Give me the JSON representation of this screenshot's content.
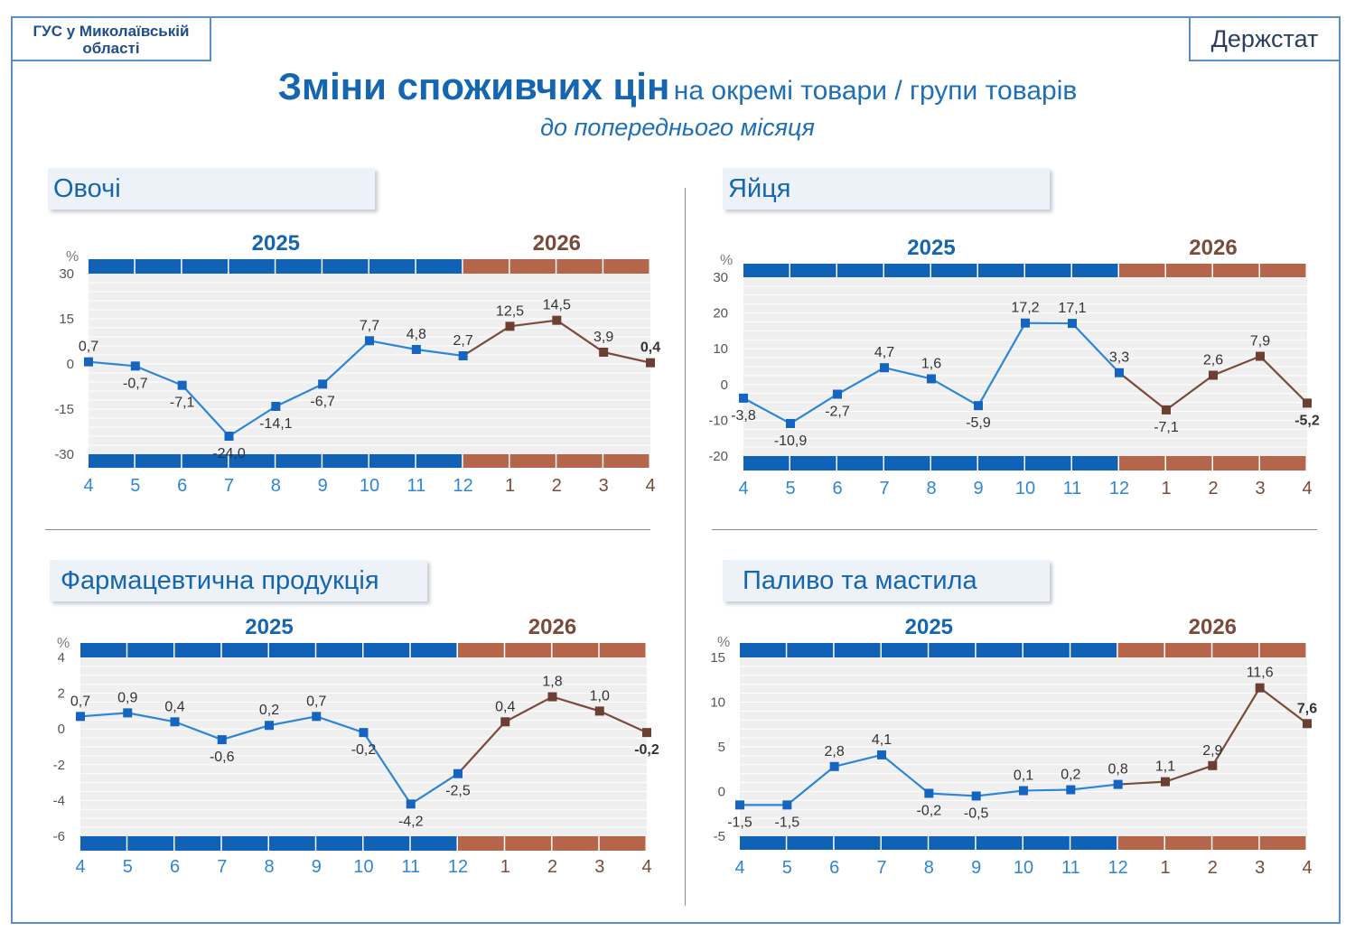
{
  "header": {
    "org_line1": "ГУС у Миколаївській",
    "org_line2": "області",
    "brand": "Держстат",
    "title_main": "Зміни споживчих цін",
    "title_rest": "на окремі товари / групи товарів",
    "subtitle": "до попереднього місяця"
  },
  "colors": {
    "year2025": "#0f62b6",
    "year2026": "#b5654a",
    "line2025": "#2e86d6",
    "line2026": "#7a4a3a",
    "plot_bg": "#efeff0",
    "grid": "#ffffff"
  },
  "chart_data": [
    {
      "type": "line",
      "title": "Овочі",
      "ylabel": "%",
      "years": [
        "2025",
        "2026"
      ],
      "categories": [
        "4",
        "5",
        "6",
        "7",
        "8",
        "9",
        "10",
        "11",
        "12",
        "1",
        "2",
        "3",
        "4"
      ],
      "values": [
        0.7,
        -0.7,
        -7.1,
        -24.0,
        -14.1,
        -6.7,
        7.7,
        4.8,
        2.7,
        12.5,
        14.5,
        3.9,
        0.4
      ],
      "value_labels": [
        "0,7",
        "-0,7",
        "-7,1",
        "-24,0",
        "-14,1",
        "-6,7",
        "7,7",
        "4,8",
        "2,7",
        "12,5",
        "14,5",
        "3,9",
        "0,4"
      ],
      "yticks": [
        30,
        15,
        0,
        -15,
        -30
      ],
      "ytick_labels": [
        "30",
        "15",
        "0",
        "-15",
        "-30"
      ],
      "ylim": [
        -30,
        30
      ],
      "split_index": 8,
      "grid": true
    },
    {
      "type": "line",
      "title": "Яйця",
      "ylabel": "%",
      "years": [
        "2025",
        "2026"
      ],
      "categories": [
        "4",
        "5",
        "6",
        "7",
        "8",
        "9",
        "10",
        "11",
        "12",
        "1",
        "2",
        "3",
        "4"
      ],
      "values": [
        -3.8,
        -10.9,
        -2.7,
        4.7,
        1.6,
        -5.9,
        17.2,
        17.1,
        3.3,
        -7.1,
        2.6,
        7.9,
        -5.2
      ],
      "value_labels": [
        "-3,8",
        "-10,9",
        "-2,7",
        "4,7",
        "1,6",
        "-5,9",
        "17,2",
        "17,1",
        "3,3",
        "-7,1",
        "2,6",
        "7,9",
        "-5,2"
      ],
      "yticks": [
        30,
        20,
        10,
        0,
        -10,
        -20
      ],
      "ytick_labels": [
        "30",
        "20",
        "10",
        "0",
        "-10",
        "-20"
      ],
      "ylim": [
        -20,
        30
      ],
      "split_index": 8,
      "grid": true
    },
    {
      "type": "line",
      "title": "Фармацевтична продукція",
      "ylabel": "%",
      "years": [
        "2025",
        "2026"
      ],
      "categories": [
        "4",
        "5",
        "6",
        "7",
        "8",
        "9",
        "10",
        "11",
        "12",
        "1",
        "2",
        "3",
        "4"
      ],
      "values": [
        0.7,
        0.9,
        0.4,
        -0.6,
        0.2,
        0.7,
        -0.2,
        -4.2,
        -2.5,
        0.4,
        1.8,
        1.0,
        -0.2
      ],
      "value_labels": [
        "0,7",
        "0,9",
        "0,4",
        "-0,6",
        "0,2",
        "0,7",
        "-0,2",
        "-4,2",
        "-2,5",
        "0,4",
        "1,8",
        "1,0",
        "-0,2"
      ],
      "yticks": [
        4,
        2,
        0,
        -2,
        -4,
        -6
      ],
      "ytick_labels": [
        "4",
        "2",
        "0",
        "-2",
        "-4",
        "-6"
      ],
      "ylim": [
        -6,
        4
      ],
      "split_index": 8,
      "grid": true
    },
    {
      "type": "line",
      "title": "Паливо та мастила",
      "ylabel": "%",
      "years": [
        "2025",
        "2026"
      ],
      "categories": [
        "4",
        "5",
        "6",
        "7",
        "8",
        "9",
        "10",
        "11",
        "12",
        "1",
        "2",
        "3",
        "4"
      ],
      "values": [
        -1.5,
        -1.5,
        2.8,
        4.1,
        -0.2,
        -0.5,
        0.1,
        0.2,
        0.8,
        1.1,
        2.9,
        11.6,
        7.6
      ],
      "value_labels": [
        "-1,5",
        "-1,5",
        "2,8",
        "4,1",
        "-0,2",
        "-0,5",
        "0,1",
        "0,2",
        "0,8",
        "1,1",
        "2,9",
        "11,6",
        "7,6"
      ],
      "yticks": [
        15,
        10,
        5,
        0,
        -5
      ],
      "ytick_labels": [
        "15",
        "10",
        "5",
        "0",
        "-5"
      ],
      "ylim": [
        -5,
        15
      ],
      "split_index": 8,
      "grid": true
    }
  ]
}
